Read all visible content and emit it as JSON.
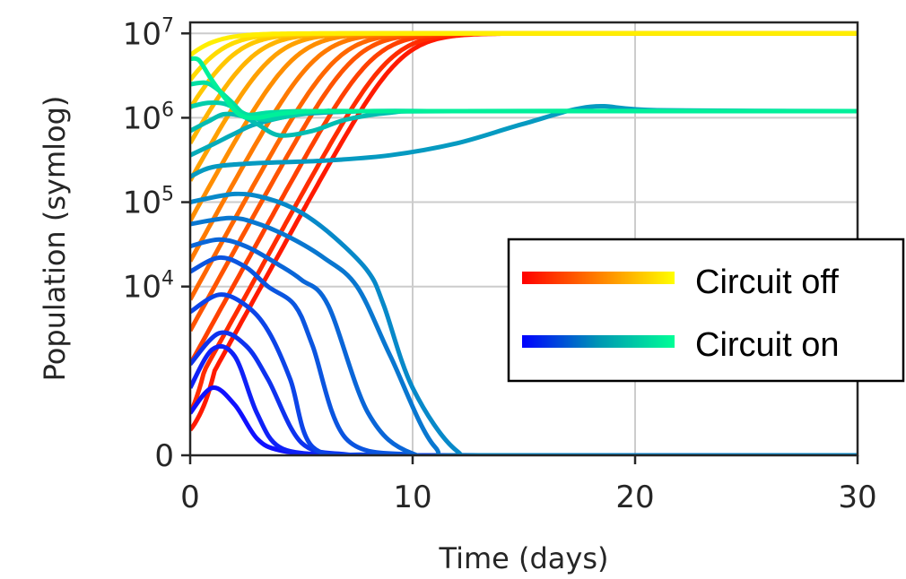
{
  "chart_data": {
    "type": "line",
    "xlabel": "Time (days)",
    "ylabel": "Population (symlog)",
    "xlim": [
      0,
      30
    ],
    "ylim": [
      -0.1,
      13500000.0
    ],
    "yscale": "symlog",
    "symlog_linthresh": 1000,
    "grid": true,
    "legend_position": "center-right",
    "x_ticks": [
      {
        "value": 0,
        "label": "0"
      },
      {
        "value": 10,
        "label": "10"
      },
      {
        "value": 20,
        "label": "20"
      },
      {
        "value": 30,
        "label": "30"
      }
    ],
    "y_ticks": [
      {
        "value": 0,
        "base": "0",
        "exp": ""
      },
      {
        "value": 10000,
        "base": "10",
        "exp": "4"
      },
      {
        "value": 100000,
        "base": "10",
        "exp": "5"
      },
      {
        "value": 1000000,
        "base": "10",
        "exp": "6"
      },
      {
        "value": 10000000,
        "base": "10",
        "exp": "7"
      }
    ],
    "legend": [
      {
        "label": "Circuit off",
        "gradient": [
          "#ff0000",
          "#ff8000",
          "#ffff00"
        ]
      },
      {
        "label": "Circuit on",
        "gradient": [
          "#0000ff",
          "#0096b4",
          "#00ff96"
        ]
      }
    ],
    "series_groups": [
      {
        "group": "Circuit off",
        "color_from": "#ff1a00",
        "color_to": "#ffee00",
        "capacity": 10000000,
        "initial_values": [
          300,
          500,
          1200,
          3000,
          7000,
          20000,
          60000,
          180000,
          500000,
          1300000,
          2800000,
          5500000
        ],
        "growth_rates": [
          1.1,
          1.1,
          1.1,
          1.1,
          1.1,
          1.1,
          1.1,
          1.1,
          1.1,
          1.1,
          1.1,
          1.1
        ]
      },
      {
        "group": "Circuit on",
        "color_from": "#1010ff",
        "color_to": "#00f09a",
        "final_high": 1200000,
        "series": [
          {
            "x": [
              0,
              1,
              2,
              3,
              4,
              6,
              8,
              10,
              30
            ],
            "y": [
              500,
              800,
              600,
              200,
              60,
              5,
              0,
              0,
              0
            ]
          },
          {
            "x": [
              0,
              1,
              2,
              3,
              4,
              6,
              8,
              10,
              30
            ],
            "y": [
              800,
              1800,
              1500,
              500,
              100,
              5,
              0,
              0,
              0
            ]
          },
          {
            "x": [
              0,
              1.3,
              2.5,
              3.5,
              5,
              7,
              9,
              12,
              30
            ],
            "y": [
              1200,
              2800,
              2000,
              900,
              150,
              10,
              0,
              0,
              0
            ]
          },
          {
            "x": [
              0,
              1.3,
              2.5,
              3.5,
              4.5,
              5.5,
              8,
              12,
              30
            ],
            "y": [
              5000,
              8000,
              6000,
              3000,
              900,
              100,
              5,
              0,
              0
            ]
          },
          {
            "x": [
              0,
              1.3,
              2.5,
              3.5,
              4.7,
              5.5,
              7,
              10,
              13,
              30
            ],
            "y": [
              15000,
              22000,
              17000,
              10000,
              6000,
              2000,
              200,
              5,
              0,
              0
            ]
          },
          {
            "x": [
              0,
              1.3,
              2.5,
              4,
              5,
              6.2,
              8,
              10,
              13,
              30
            ],
            "y": [
              30000,
              36000,
              30000,
              18000,
              12000,
              6000,
              500,
              20,
              0,
              0
            ]
          },
          {
            "x": [
              0,
              1.8,
              3,
              4.5,
              6,
              7.5,
              9,
              11,
              13,
              30
            ],
            "y": [
              55000,
              65000,
              56000,
              38000,
              22000,
              10000,
              1500,
              100,
              0,
              0
            ]
          },
          {
            "x": [
              0,
              2,
              3.5,
              5,
              6.5,
              8,
              8.7,
              10,
              12,
              14,
              30
            ],
            "y": [
              100000,
              125000,
              110000,
              75000,
              38000,
              15000,
              6000,
              800,
              50,
              0,
              0
            ]
          },
          {
            "x": [
              0,
              1,
              3,
              6,
              9,
              12,
              15,
              18,
              21,
              30
            ],
            "y": [
              200000,
              260000,
              290000,
              310000,
              360000,
              500000,
              850000,
              1350000,
              1230000,
              1200000
            ]
          },
          {
            "x": [
              0,
              1,
              2,
              3,
              5,
              8,
              12,
              20,
              30
            ],
            "y": [
              360000,
              480000,
              650000,
              850000,
              1100000,
              1200000,
              1200000,
              1200000,
              1200000
            ]
          },
          {
            "x": [
              0,
              0.8,
              1.5,
              2.3,
              3,
              4,
              5.5,
              7,
              9,
              12,
              30
            ],
            "y": [
              700000,
              900000,
              1100000,
              1050000,
              850000,
              620000,
              700000,
              950000,
              1150000,
              1200000,
              1200000
            ]
          },
          {
            "x": [
              0,
              0.8,
              1.6,
              2.5,
              3.3,
              4.5,
              6,
              9,
              30
            ],
            "y": [
              1350000,
              1500000,
              1450000,
              1100000,
              950000,
              1050000,
              1200000,
              1200000,
              1200000
            ]
          },
          {
            "x": [
              0,
              0.7,
              1.2,
              1.8,
              2.5,
              3.5,
              5,
              8,
              30
            ],
            "y": [
              2500000,
              2600000,
              2200000,
              1600000,
              1100000,
              1150000,
              1200000,
              1200000,
              1200000
            ]
          },
          {
            "x": [
              0,
              0.4,
              0.9,
              1.5,
              2.2,
              3,
              4.5,
              8,
              30
            ],
            "y": [
              5000000,
              4800000,
              3000000,
              1800000,
              1100000,
              1000000,
              1150000,
              1200000,
              1200000
            ]
          }
        ]
      }
    ]
  }
}
